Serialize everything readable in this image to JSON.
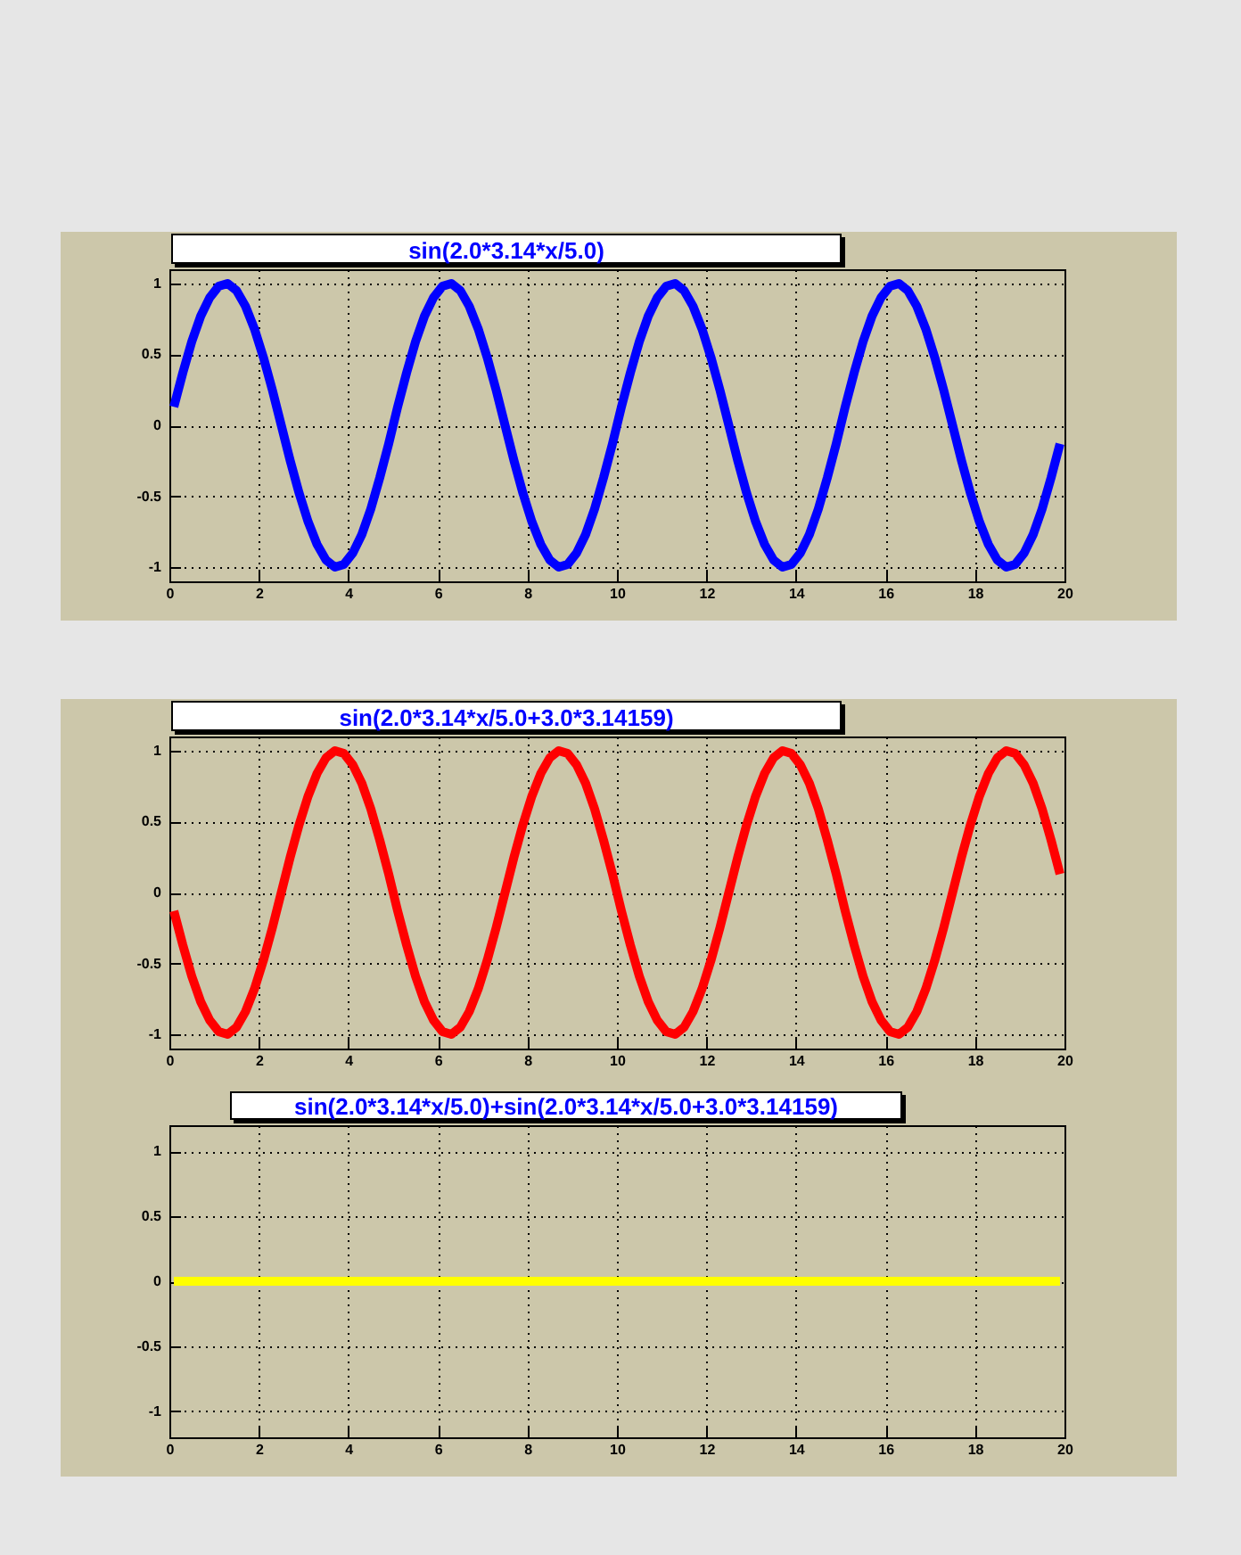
{
  "chart_data": [
    {
      "type": "line",
      "title": "sin(2.0*3.14*x/5.0)",
      "x": [
        0.1,
        0.3,
        0.5,
        0.7,
        0.9,
        1.1,
        1.3,
        1.5,
        1.7,
        1.9,
        2.1,
        2.3,
        2.5,
        2.7,
        2.9,
        3.1,
        3.3,
        3.5,
        3.7,
        3.9,
        4.1,
        4.3,
        4.5,
        4.7,
        4.9,
        5.1,
        5.3,
        5.5,
        5.7,
        5.9,
        6.1,
        6.3,
        6.5,
        6.7,
        6.9,
        7.1,
        7.3,
        7.5,
        7.7,
        7.9,
        8.1,
        8.3,
        8.5,
        8.7,
        8.9,
        9.1,
        9.3,
        9.5,
        9.7,
        9.9,
        10.1,
        10.3,
        10.5,
        10.7,
        10.9,
        11.1,
        11.3,
        11.5,
        11.7,
        11.9,
        12.1,
        12.3,
        12.5,
        12.7,
        12.9,
        13.1,
        13.3,
        13.5,
        13.7,
        13.9,
        14.1,
        14.3,
        14.5,
        14.7,
        14.9,
        15.1,
        15.3,
        15.5,
        15.7,
        15.9,
        16.1,
        16.3,
        16.5,
        16.7,
        16.9,
        17.1,
        17.3,
        17.5,
        17.7,
        17.9,
        18.1,
        18.3,
        18.5,
        18.7,
        18.9,
        19.1,
        19.3,
        19.5,
        19.7,
        19.9
      ],
      "series": [
        {
          "color": "#0000ff",
          "values": [
            0.13,
            0.37,
            0.59,
            0.77,
            0.9,
            0.98,
            1,
            0.95,
            0.84,
            0.68,
            0.48,
            0.25,
            0,
            -0.25,
            -0.48,
            -0.68,
            -0.84,
            -0.95,
            -1,
            -0.98,
            -0.9,
            -0.77,
            -0.59,
            -0.37,
            -0.13,
            0.13,
            0.37,
            0.59,
            0.77,
            0.9,
            0.98,
            1,
            0.95,
            0.84,
            0.68,
            0.48,
            0.25,
            0,
            -0.25,
            -0.48,
            -0.68,
            -0.84,
            -0.95,
            -1,
            -0.98,
            -0.9,
            -0.77,
            -0.59,
            -0.37,
            -0.13,
            0.13,
            0.37,
            0.59,
            0.77,
            0.9,
            0.98,
            1,
            0.95,
            0.84,
            0.68,
            0.48,
            0.25,
            0,
            -0.25,
            -0.48,
            -0.68,
            -0.84,
            -0.95,
            -1,
            -0.98,
            -0.9,
            -0.77,
            -0.59,
            -0.37,
            -0.13,
            0.13,
            0.37,
            0.59,
            0.77,
            0.9,
            0.98,
            1,
            0.95,
            0.84,
            0.68,
            0.48,
            0.25,
            0,
            -0.25,
            -0.48,
            -0.68,
            -0.84,
            -0.95,
            -1,
            -0.98,
            -0.9,
            -0.77,
            -0.59,
            -0.37,
            -0.13
          ]
        }
      ],
      "xlim": [
        0,
        20
      ],
      "ylim": [
        -1.1,
        1.1
      ],
      "xticks": [
        0,
        2,
        4,
        6,
        8,
        10,
        12,
        14,
        16,
        18,
        20
      ],
      "yticks": [
        -1,
        -0.5,
        0,
        0.5,
        1
      ],
      "grid": true
    },
    {
      "type": "line",
      "title": "sin(2.0*3.14*x/5.0+3.0*3.14159)",
      "x": [
        0.1,
        0.3,
        0.5,
        0.7,
        0.9,
        1.1,
        1.3,
        1.5,
        1.7,
        1.9,
        2.1,
        2.3,
        2.5,
        2.7,
        2.9,
        3.1,
        3.3,
        3.5,
        3.7,
        3.9,
        4.1,
        4.3,
        4.5,
        4.7,
        4.9,
        5.1,
        5.3,
        5.5,
        5.7,
        5.9,
        6.1,
        6.3,
        6.5,
        6.7,
        6.9,
        7.1,
        7.3,
        7.5,
        7.7,
        7.9,
        8.1,
        8.3,
        8.5,
        8.7,
        8.9,
        9.1,
        9.3,
        9.5,
        9.7,
        9.9,
        10.1,
        10.3,
        10.5,
        10.7,
        10.9,
        11.1,
        11.3,
        11.5,
        11.7,
        11.9,
        12.1,
        12.3,
        12.5,
        12.7,
        12.9,
        13.1,
        13.3,
        13.5,
        13.7,
        13.9,
        14.1,
        14.3,
        14.5,
        14.7,
        14.9,
        15.1,
        15.3,
        15.5,
        15.7,
        15.9,
        16.1,
        16.3,
        16.5,
        16.7,
        16.9,
        17.1,
        17.3,
        17.5,
        17.7,
        17.9,
        18.1,
        18.3,
        18.5,
        18.7,
        18.9,
        19.1,
        19.3,
        19.5,
        19.7,
        19.9
      ],
      "series": [
        {
          "color": "#ff0000",
          "values": [
            -0.13,
            -0.37,
            -0.59,
            -0.77,
            -0.9,
            -0.98,
            -1,
            -0.95,
            -0.84,
            -0.68,
            -0.48,
            -0.25,
            0,
            0.25,
            0.48,
            0.68,
            0.84,
            0.95,
            1,
            0.98,
            0.9,
            0.77,
            0.59,
            0.37,
            0.13,
            -0.13,
            -0.37,
            -0.59,
            -0.77,
            -0.9,
            -0.98,
            -1,
            -0.95,
            -0.84,
            -0.68,
            -0.48,
            -0.25,
            0,
            0.25,
            0.48,
            0.68,
            0.84,
            0.95,
            1,
            0.98,
            0.9,
            0.77,
            0.59,
            0.37,
            0.13,
            -0.13,
            -0.37,
            -0.59,
            -0.77,
            -0.9,
            -0.98,
            -1,
            -0.95,
            -0.84,
            -0.68,
            -0.48,
            -0.25,
            0,
            0.25,
            0.48,
            0.68,
            0.84,
            0.95,
            1,
            0.98,
            0.9,
            0.77,
            0.59,
            0.37,
            0.13,
            -0.13,
            -0.37,
            -0.59,
            -0.77,
            -0.9,
            -0.98,
            -1,
            -0.95,
            -0.84,
            -0.68,
            -0.48,
            -0.25,
            0,
            0.25,
            0.48,
            0.68,
            0.84,
            0.95,
            1,
            0.98,
            0.9,
            0.77,
            0.59,
            0.37,
            0.13
          ]
        }
      ],
      "xlim": [
        0,
        20
      ],
      "ylim": [
        -1.1,
        1.1
      ],
      "xticks": [
        0,
        2,
        4,
        6,
        8,
        10,
        12,
        14,
        16,
        18,
        20
      ],
      "yticks": [
        -1,
        -0.5,
        0,
        0.5,
        1
      ],
      "grid": true
    },
    {
      "type": "line",
      "title": "sin(2.0*3.14*x/5.0)+sin(2.0*3.14*x/5.0+3.0*3.14159)",
      "x": [
        0.1,
        0.3,
        0.5,
        0.7,
        0.9,
        1.1,
        1.3,
        1.5,
        1.7,
        1.9,
        2.1,
        2.3,
        2.5,
        2.7,
        2.9,
        3.1,
        3.3,
        3.5,
        3.7,
        3.9,
        4.1,
        4.3,
        4.5,
        4.7,
        4.9,
        5.1,
        5.3,
        5.5,
        5.7,
        5.9,
        6.1,
        6.3,
        6.5,
        6.7,
        6.9,
        7.1,
        7.3,
        7.5,
        7.7,
        7.9,
        8.1,
        8.3,
        8.5,
        8.7,
        8.9,
        9.1,
        9.3,
        9.5,
        9.7,
        9.9,
        10.1,
        10.3,
        10.5,
        10.7,
        10.9,
        11.1,
        11.3,
        11.5,
        11.7,
        11.9,
        12.1,
        12.3,
        12.5,
        12.7,
        12.9,
        13.1,
        13.3,
        13.5,
        13.7,
        13.9,
        14.1,
        14.3,
        14.5,
        14.7,
        14.9,
        15.1,
        15.3,
        15.5,
        15.7,
        15.9,
        16.1,
        16.3,
        16.5,
        16.7,
        16.9,
        17.1,
        17.3,
        17.5,
        17.7,
        17.9,
        18.1,
        18.3,
        18.5,
        18.7,
        18.9,
        19.1,
        19.3,
        19.5,
        19.7,
        19.9
      ],
      "series": [
        {
          "color": "#ffff00",
          "values": [
            0,
            0,
            0,
            0,
            0,
            0,
            0,
            0,
            0,
            0,
            0,
            0,
            0,
            0,
            0,
            0,
            0,
            0,
            0,
            0,
            0,
            0,
            0,
            0,
            0,
            0,
            0,
            0,
            0,
            0,
            0,
            0,
            0,
            0,
            0,
            0,
            0,
            0,
            0,
            0,
            0,
            0,
            0,
            0,
            0,
            0,
            0,
            0,
            0,
            0,
            0,
            0,
            0,
            0,
            0,
            0,
            0,
            0,
            0,
            0,
            0,
            0,
            0,
            0,
            0,
            0,
            0,
            0,
            0,
            0,
            0,
            0,
            0,
            0,
            0,
            0,
            0,
            0,
            0,
            0,
            0,
            0,
            0,
            0,
            0,
            0,
            0,
            0,
            0,
            0,
            0,
            0,
            0,
            0,
            0,
            0,
            0,
            0,
            0,
            0
          ]
        }
      ],
      "xlim": [
        0,
        20
      ],
      "ylim": [
        -1.2,
        1.2
      ],
      "xticks": [
        0,
        2,
        4,
        6,
        8,
        10,
        12,
        14,
        16,
        18,
        20
      ],
      "yticks": [
        -1,
        -0.5,
        0,
        0.5,
        1
      ],
      "grid": true
    }
  ]
}
